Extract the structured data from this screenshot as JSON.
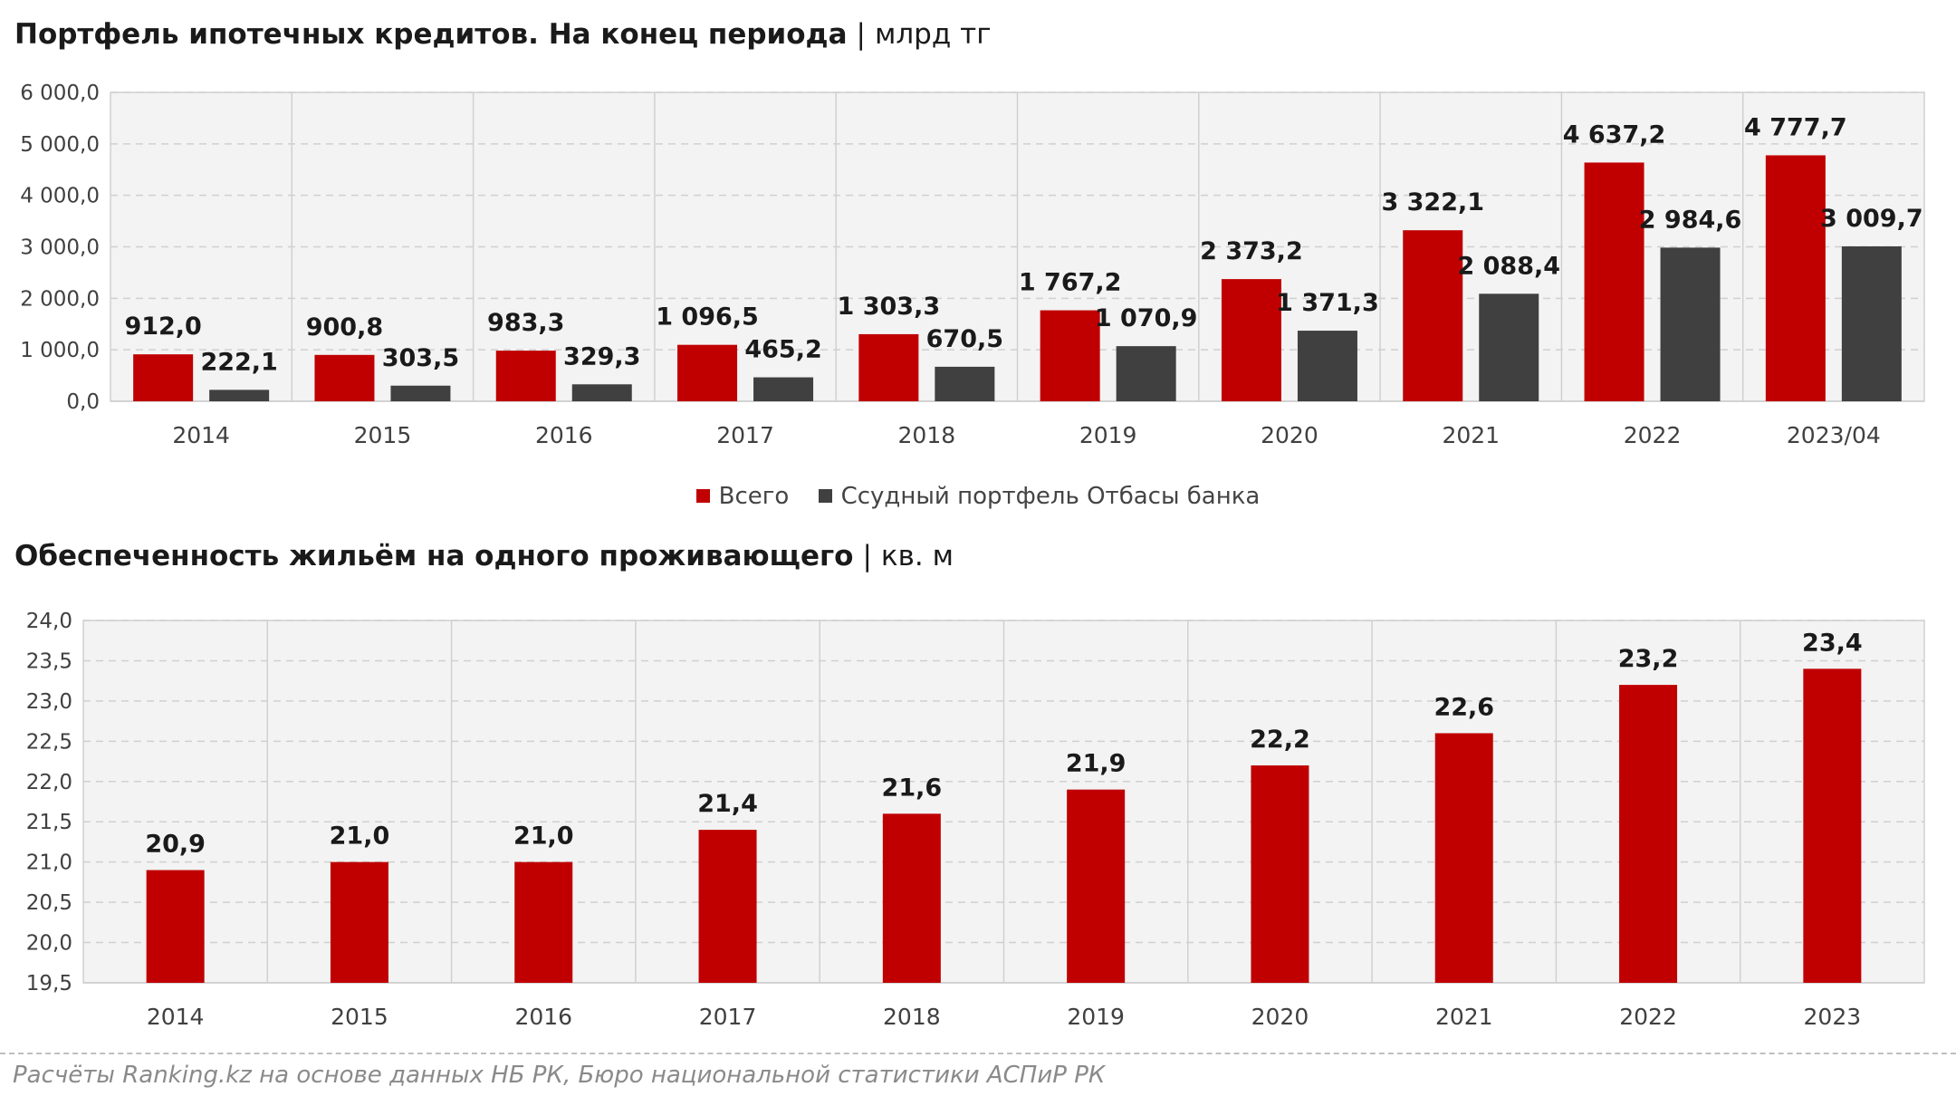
{
  "chart_data": [
    {
      "type": "bar",
      "title": "Портфель ипотечных кредитов. На конец периода",
      "unit": "млрд тг",
      "categories": [
        "2014",
        "2015",
        "2016",
        "2017",
        "2018",
        "2019",
        "2020",
        "2021",
        "2022",
        "2023/04"
      ],
      "series": [
        {
          "name": "Всего",
          "color": "#C00000",
          "values": [
            912.0,
            900.8,
            983.3,
            1096.5,
            1303.3,
            1767.2,
            2373.2,
            3322.1,
            4637.2,
            4777.7
          ],
          "labels": [
            "912,0",
            "900,8",
            "983,3",
            "1 096,5",
            "1 303,3",
            "1 767,2",
            "2 373,2",
            "3 322,1",
            "4 637,2",
            "4 777,7"
          ]
        },
        {
          "name": "Ссудный портфель Отбасы банка",
          "color": "#404040",
          "values": [
            222.1,
            303.5,
            329.3,
            465.2,
            670.5,
            1070.9,
            1371.3,
            2088.4,
            2984.6,
            3009.7
          ],
          "labels": [
            "222,1",
            "303,5",
            "329,3",
            "465,2",
            "670,5",
            "1 070,9",
            "1 371,3",
            "2 088,4",
            "2 984,6",
            "3 009,7"
          ]
        }
      ],
      "ylim": [
        0,
        6000
      ],
      "yticks": [
        0,
        1000,
        2000,
        3000,
        4000,
        5000,
        6000
      ],
      "ytick_labels": [
        "0,0",
        "1 000,0",
        "2 000,0",
        "3 000,0",
        "4 000,0",
        "5 000,0",
        "6 000,0"
      ],
      "grid": true,
      "legend_position": "bottom"
    },
    {
      "type": "bar",
      "title": "Обеспеченность жильём на одного проживающего",
      "unit": "кв. м",
      "categories": [
        "2014",
        "2015",
        "2016",
        "2017",
        "2018",
        "2019",
        "2020",
        "2021",
        "2022",
        "2023"
      ],
      "series": [
        {
          "color": "#C00000",
          "values": [
            20.9,
            21.0,
            21.0,
            21.4,
            21.6,
            21.9,
            22.2,
            22.6,
            23.2,
            23.4
          ],
          "labels": [
            "20,9",
            "21,0",
            "21,0",
            "21,4",
            "21,6",
            "21,9",
            "22,2",
            "22,6",
            "23,2",
            "23,4"
          ]
        }
      ],
      "ylim": [
        19.5,
        24.0
      ],
      "yticks": [
        19.5,
        20.0,
        20.5,
        21.0,
        21.5,
        22.0,
        22.5,
        23.0,
        23.5,
        24.0
      ],
      "ytick_labels": [
        "19,5",
        "20,0",
        "20,5",
        "21,0",
        "21,5",
        "22,0",
        "22,5",
        "23,0",
        "23,5",
        "24,0"
      ],
      "grid": true
    }
  ],
  "source": "Расчёты Ranking.kz на основе данных НБ РК, Бюро национальной статистики АСПиР РК"
}
